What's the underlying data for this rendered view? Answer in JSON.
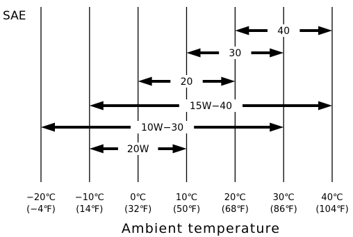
{
  "chart_data": {
    "type": "range",
    "title": "SAE",
    "xlabel": "Ambient temperature",
    "ylabel": "",
    "x_unit": "°C",
    "xlim": [
      -20,
      40
    ],
    "grid": "vertical",
    "ticks": [
      {
        "c": -20,
        "c_label": "−20℃",
        "f_label": "(−4℉)"
      },
      {
        "c": -10,
        "c_label": "−10℃",
        "f_label": "(14℉)"
      },
      {
        "c": 0,
        "c_label": "0℃",
        "f_label": "(32℉)"
      },
      {
        "c": 10,
        "c_label": "10℃",
        "f_label": "(50℉)"
      },
      {
        "c": 20,
        "c_label": "20℃",
        "f_label": "(68℉)"
      },
      {
        "c": 30,
        "c_label": "30℃",
        "f_label": "(86℉)"
      },
      {
        "c": 40,
        "c_label": "40℃",
        "f_label": "(104℉)"
      }
    ],
    "ranges": [
      {
        "label": "40",
        "from": 20,
        "to": 40
      },
      {
        "label": "30",
        "from": 10,
        "to": 30
      },
      {
        "label": "20",
        "from": 0,
        "to": 20
      },
      {
        "label": "15W−40",
        "from": -10,
        "to": 40
      },
      {
        "label": "10W−30",
        "from": -20,
        "to": 30
      },
      {
        "label": "20W",
        "from": -10,
        "to": 10
      }
    ]
  }
}
